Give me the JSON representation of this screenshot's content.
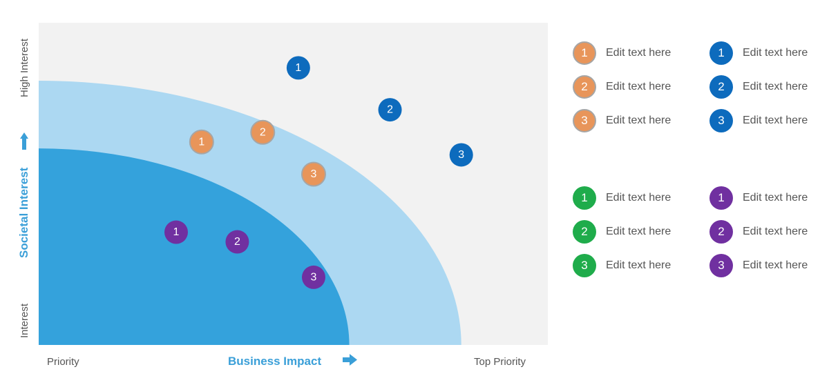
{
  "axes": {
    "y_low": "Interest",
    "y_title": "Societal Interest",
    "y_high": "High Interest",
    "x_low": "Priority",
    "x_title": "Business Impact",
    "x_high": "Top Priority"
  },
  "colors": {
    "background": "#f2f2f2",
    "outer_zone": "#acd8f2",
    "inner_zone": "#34a2dc",
    "axis_title": "#3a9fd8",
    "orange": "#e8955a",
    "blue": "#0d6bbd",
    "green": "#1fac4b",
    "purple": "#7030a0"
  },
  "chart_data": {
    "type": "scatter",
    "title": "",
    "xlabel": "Business Impact",
    "ylabel": "Societal Interest",
    "xlim": [
      0,
      100
    ],
    "ylim": [
      0,
      100
    ],
    "zones": [
      {
        "name": "inner",
        "x_extent": 61,
        "y_extent": 61
      },
      {
        "name": "outer",
        "x_extent": 83,
        "y_extent": 82
      }
    ],
    "series": [
      {
        "name": "orange",
        "color": "#e8955a",
        "points": [
          {
            "label": "1",
            "x": 32,
            "y": 63
          },
          {
            "label": "2",
            "x": 44,
            "y": 66
          },
          {
            "label": "3",
            "x": 54,
            "y": 53
          }
        ]
      },
      {
        "name": "blue",
        "color": "#0d6bbd",
        "points": [
          {
            "label": "1",
            "x": 51,
            "y": 86
          },
          {
            "label": "2",
            "x": 69,
            "y": 73
          },
          {
            "label": "3",
            "x": 83,
            "y": 59
          }
        ]
      },
      {
        "name": "purple",
        "color": "#7030a0",
        "points": [
          {
            "label": "1",
            "x": 27,
            "y": 35
          },
          {
            "label": "2",
            "x": 39,
            "y": 32
          },
          {
            "label": "3",
            "x": 54,
            "y": 21
          }
        ]
      }
    ]
  },
  "legend": {
    "top_left": [
      {
        "num": "1",
        "text": "Edit text here"
      },
      {
        "num": "2",
        "text": "Edit text here"
      },
      {
        "num": "3",
        "text": "Edit text here"
      }
    ],
    "top_right": [
      {
        "num": "1",
        "text": "Edit text here"
      },
      {
        "num": "2",
        "text": "Edit text here"
      },
      {
        "num": "3",
        "text": "Edit text here"
      }
    ],
    "bottom_left": [
      {
        "num": "1",
        "text": "Edit text here"
      },
      {
        "num": "2",
        "text": "Edit text here"
      },
      {
        "num": "3",
        "text": "Edit text here"
      }
    ],
    "bottom_right": [
      {
        "num": "1",
        "text": "Edit text here"
      },
      {
        "num": "2",
        "text": "Edit text here"
      },
      {
        "num": "3",
        "text": "Edit text here"
      }
    ]
  }
}
